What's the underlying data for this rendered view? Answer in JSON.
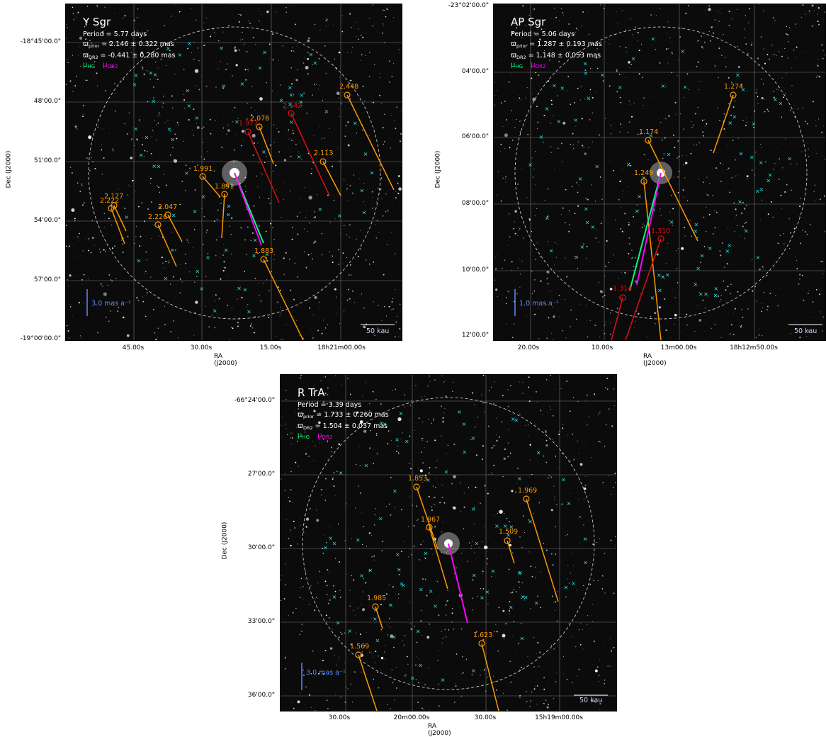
{
  "legend": {
    "mu": "μ",
    "hg_sub": "HG",
    "dr2_sub": "DR2"
  },
  "info_labels": {
    "period": "Period = ",
    "prior": "ϖ",
    "prior_sub": "prior",
    "dr2_sub": "DR2"
  },
  "colors": {
    "green": "#00ff7f",
    "magenta": "#ff00ff",
    "orange": "#ff9900",
    "red": "#e01010",
    "cyan": "#33e6e6",
    "blue": "#5b8cff"
  },
  "panels": [
    {
      "star": "Y Sgr",
      "period": "5.77 days",
      "prior": "= 2.146 ± 0.322 mas",
      "dr2": "= -0.441 ± 0.280 mas",
      "xlabel": "RA (J2000)",
      "ylabel": "Dec (J2000)",
      "yticks": [
        "-18°45'00.0\"",
        "48'00.0\"",
        "51'00.0\"",
        "54'00.0\"",
        "57'00.0\"",
        "-19°00'00.0\""
      ],
      "xticks": [
        "45.00s",
        "30.00s",
        "15.00s",
        "18h21m00.00s"
      ],
      "pm_scale": "3.0 mas a⁻¹",
      "scale_bar": "50 kau",
      "companions": [
        {
          "label": "2.127",
          "color": "orange"
        },
        {
          "label": "2.222",
          "color": "orange"
        },
        {
          "label": "2.047",
          "color": "orange"
        },
        {
          "label": "2.226",
          "color": "orange"
        },
        {
          "label": "1.991",
          "color": "orange"
        },
        {
          "label": "1.891",
          "color": "orange"
        },
        {
          "label": "1.883",
          "color": "orange"
        },
        {
          "label": "2.076",
          "color": "orange"
        },
        {
          "label": "1.977",
          "color": "red"
        },
        {
          "label": "2.142",
          "color": "red"
        },
        {
          "label": "2.113",
          "color": "orange"
        },
        {
          "label": "2.448",
          "color": "orange"
        }
      ]
    },
    {
      "star": "AP Sgr",
      "period": "5.06 days",
      "prior": "= 1.287 ± 0.193 mas",
      "dr2": "= 1.148 ± 0.053 mas",
      "xlabel": "RA (J2000)",
      "ylabel": "Dec (J2000)",
      "yticks": [
        "-23°02'00.0\"",
        "04'00.0\"",
        "06'00.0\"",
        "08'00.0\"",
        "10'00.0\"",
        "12'00.0\""
      ],
      "xticks": [
        "20.00s",
        "10.00s",
        "13m00.00s",
        "18h12m50.00s"
      ],
      "pm_scale": "1.0 mas a⁻¹",
      "scale_bar": "50 kau",
      "companions": [
        {
          "label": "1.274",
          "color": "orange"
        },
        {
          "label": "1.174",
          "color": "orange"
        },
        {
          "label": "1.249",
          "color": "orange"
        },
        {
          "label": "1.310",
          "color": "red"
        },
        {
          "label": "1.314",
          "color": "red"
        }
      ]
    },
    {
      "star": "R TrA",
      "period": "3.39 days",
      "prior": "= 1.733 ± 0.260 mas",
      "dr2": "= 1.504 ± 0.037 mas",
      "xlabel": "RA (J2000)",
      "ylabel": "Dec (J2000)",
      "yticks": [
        "-66°24'00.0\"",
        "27'00.0\"",
        "30'00.0\"",
        "33'00.0\"",
        "36'00.0\""
      ],
      "xticks": [
        "30.00s",
        "20m00.00s",
        "30.00s",
        "15h19m00.00s"
      ],
      "pm_scale": "3.0 mas a⁻¹",
      "scale_bar": "50 kau",
      "companions": [
        {
          "label": "1.853",
          "color": "orange"
        },
        {
          "label": "1.967",
          "color": "orange"
        },
        {
          "label": "1.969",
          "color": "orange"
        },
        {
          "label": "1.509",
          "color": "orange"
        },
        {
          "label": "1.985",
          "color": "orange"
        },
        {
          "label": "1.569",
          "color": "orange"
        },
        {
          "label": "1.623",
          "color": "orange"
        }
      ]
    }
  ]
}
